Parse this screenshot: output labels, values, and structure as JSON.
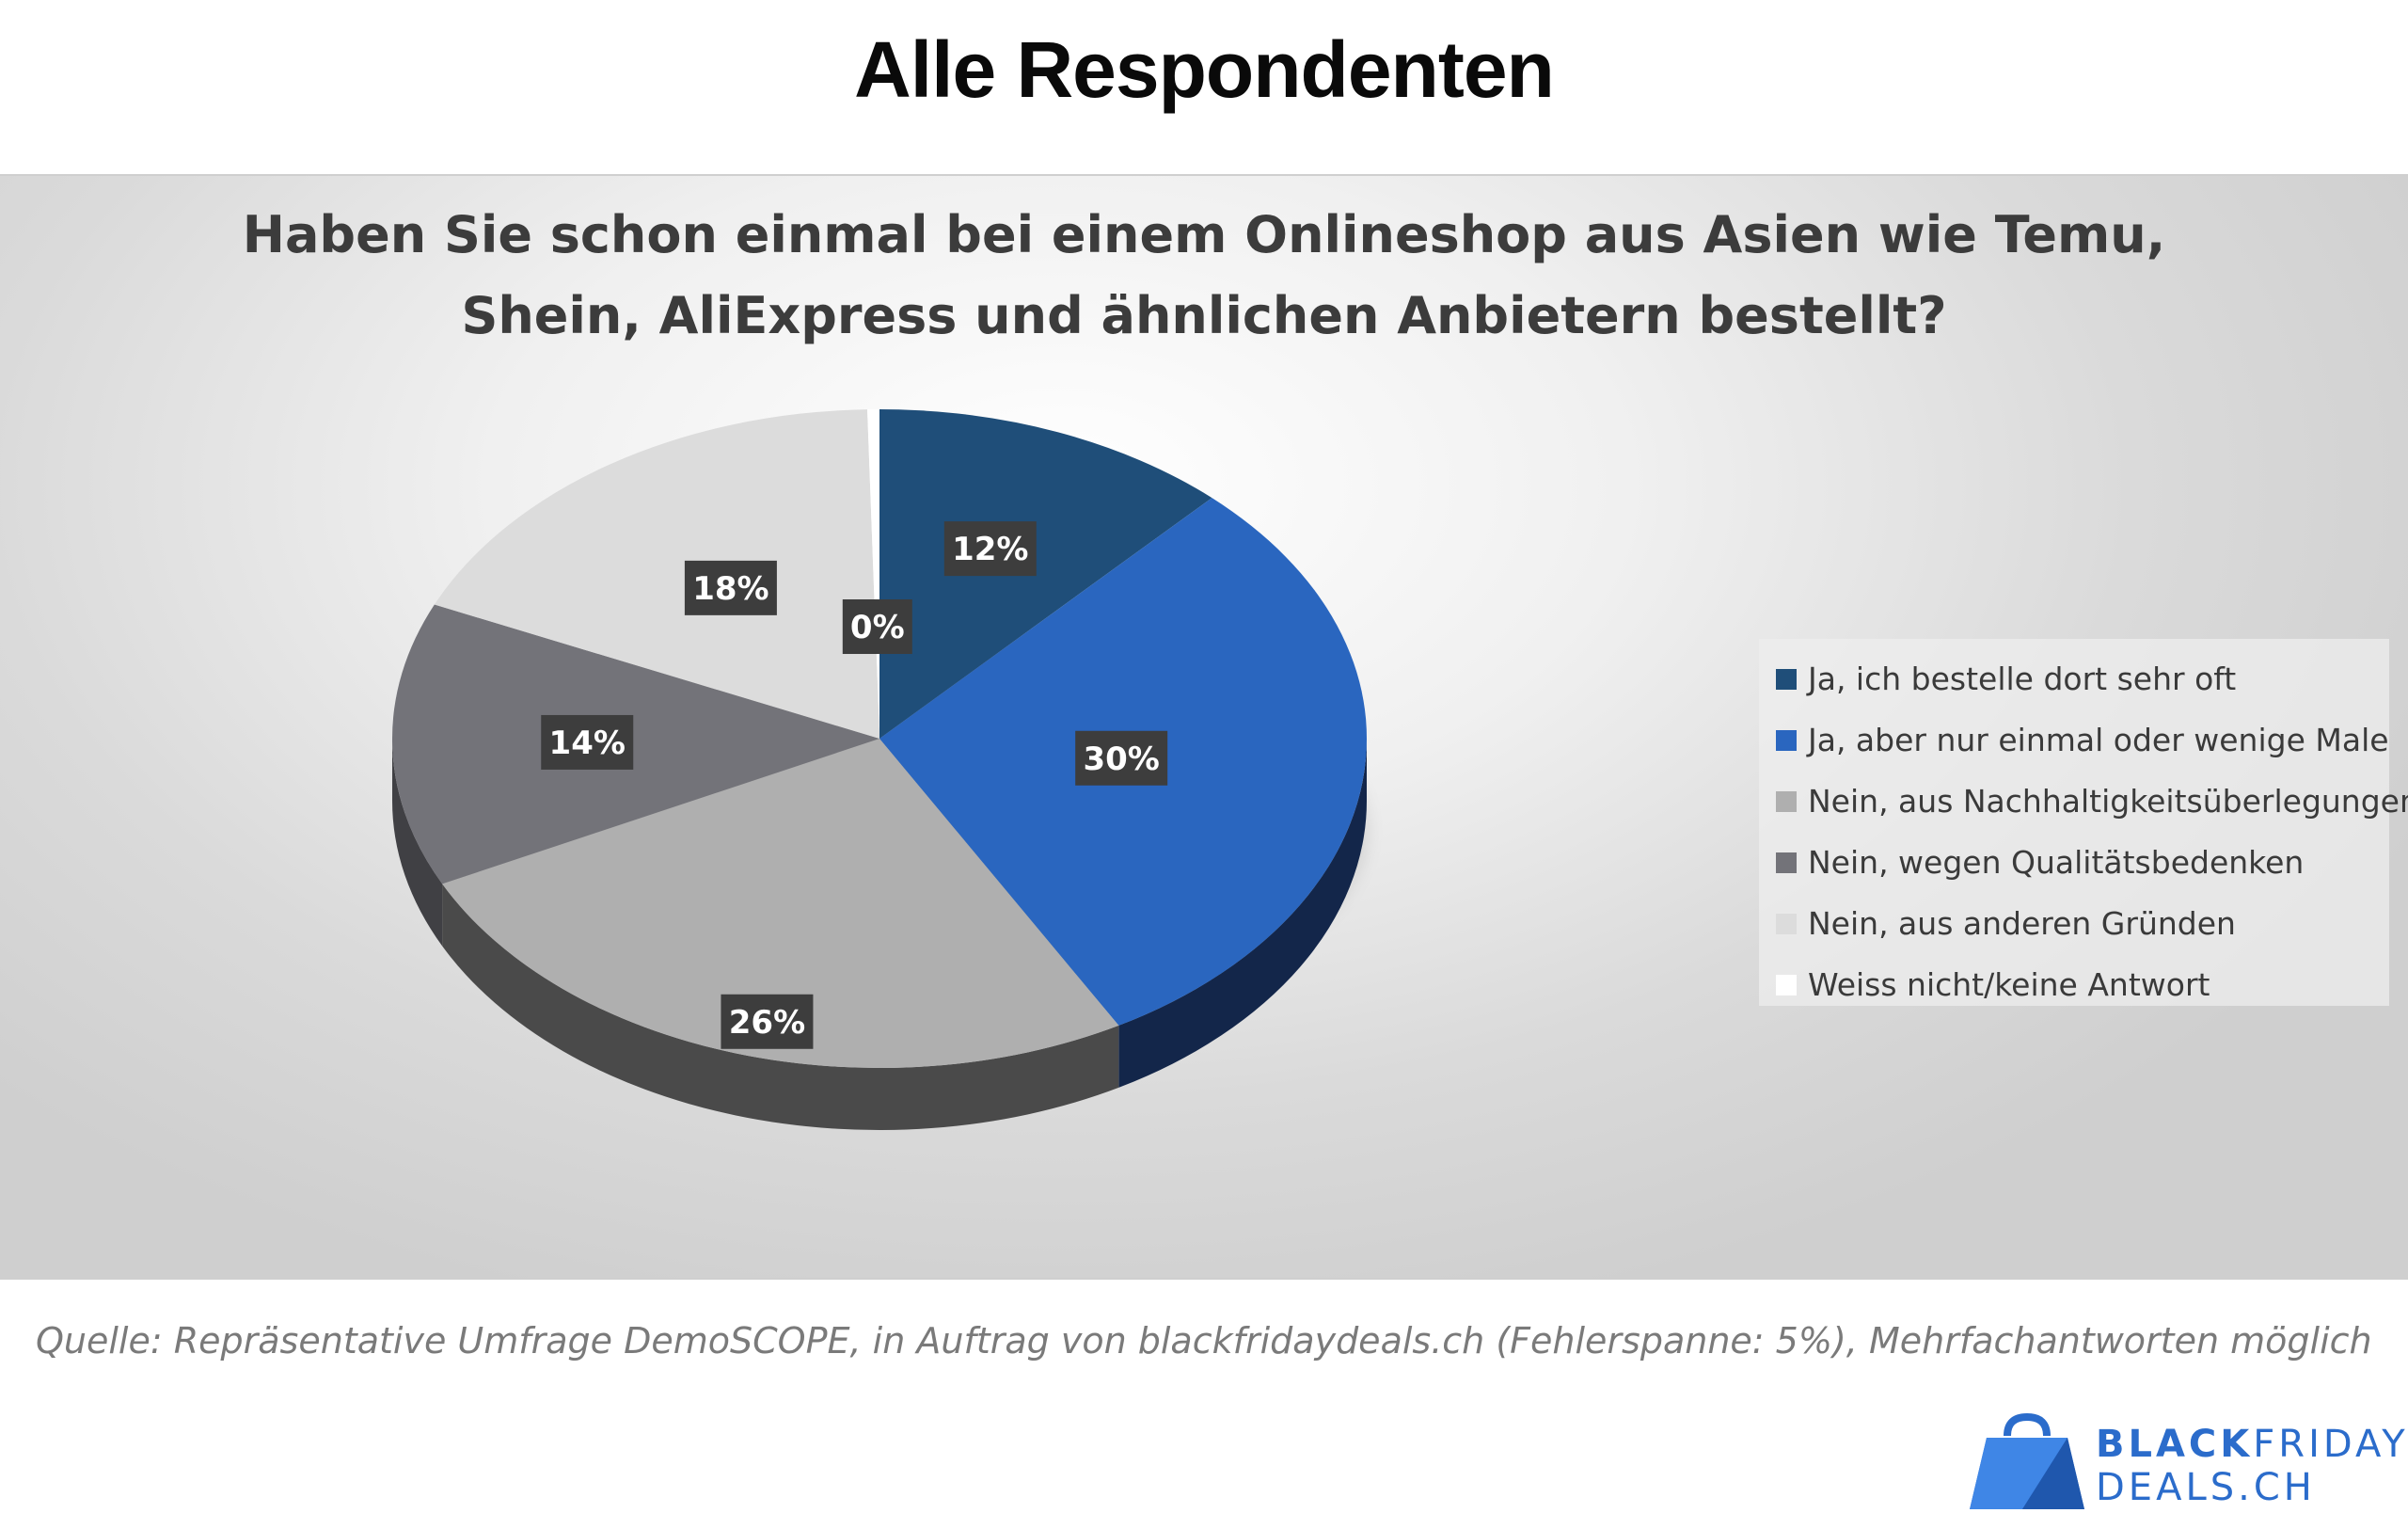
{
  "header": {
    "title": "Alle Respondenten"
  },
  "chart_data": {
    "type": "pie",
    "title": "Haben Sie schon einmal bei einem Onlineshop aus Asien wie Temu, Shein, AliExpress und ähnlichen Anbietern bestellt?",
    "title_lines": [
      "Haben Sie schon einmal bei einem Onlineshop aus Asien wie Temu,",
      "Shein, AliExpress und ähnlichen Anbietern bestellt?"
    ],
    "legend_position": "right",
    "slices": [
      {
        "label": "Ja, ich bestelle dort sehr oft",
        "value": 12,
        "display": "12%",
        "color": "#1f4e79",
        "side_color": "#12304d"
      },
      {
        "label": "Ja, aber nur einmal oder wenige Male",
        "value": 30,
        "display": "30%",
        "color": "#2a66bf",
        "side_color": "#13264a"
      },
      {
        "label": "Nein, aus Nachhaltigkeitsüberlegungen",
        "value": 26,
        "display": "26%",
        "color": "#afafaf",
        "side_color": "#4a4a4a"
      },
      {
        "label": "Nein, wegen Qualitätsbedenken",
        "value": 14,
        "display": "14%",
        "color": "#737379",
        "side_color": "#404044"
      },
      {
        "label": "Nein, aus anderen Gründen",
        "value": 18,
        "display": "18%",
        "color": "#dcdcdc",
        "side_color": "#8a8a8a"
      },
      {
        "label": "Weiss nicht/keine Antwort",
        "value": 0.4,
        "display": "0%",
        "color": "#ffffff",
        "side_color": "#dddddd"
      }
    ]
  },
  "footer": {
    "source": "Quelle: Repräsentative Umfrage DemoSCOPE, in Auftrag von blackfridaydeals.ch (Fehlerspanne: 5%), Mehrfachantworten möglich"
  },
  "logo": {
    "line1_bold": "BLACK",
    "line1_rest": "FRIDAY",
    "line2": "DEALS.CH",
    "color": "#2b6ccb"
  }
}
